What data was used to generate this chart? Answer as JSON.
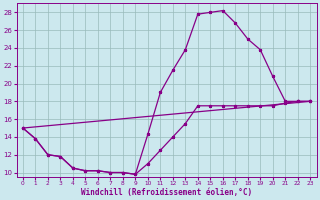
{
  "xlabel": "Windchill (Refroidissement éolien,°C)",
  "bg_color": "#cce8ee",
  "line_color": "#880088",
  "grid_color": "#99bbbb",
  "xlim": [
    -0.5,
    23.5
  ],
  "ylim": [
    9.5,
    29
  ],
  "yticks": [
    10,
    12,
    14,
    16,
    18,
    20,
    22,
    24,
    26,
    28
  ],
  "xticks": [
    0,
    1,
    2,
    3,
    4,
    5,
    6,
    7,
    8,
    9,
    10,
    11,
    12,
    13,
    14,
    15,
    16,
    17,
    18,
    19,
    20,
    21,
    22,
    23
  ],
  "curve1_x": [
    0,
    1,
    2,
    3,
    4,
    5,
    6,
    7,
    8,
    9,
    10,
    11,
    12,
    13,
    14,
    15,
    16,
    17,
    18,
    19,
    20,
    21,
    22,
    23
  ],
  "curve1_y": [
    15.0,
    13.8,
    12.0,
    11.8,
    10.5,
    10.2,
    10.2,
    10.0,
    10.0,
    9.8,
    14.3,
    19.0,
    21.5,
    23.8,
    27.8,
    28.0,
    28.2,
    26.8,
    25.0,
    23.8,
    20.8,
    18.0,
    18.0,
    18.0
  ],
  "curve2_x": [
    0,
    1,
    2,
    3,
    4,
    5,
    6,
    7,
    8,
    9,
    10,
    11,
    12,
    13,
    14,
    15,
    16,
    17,
    18,
    19,
    20,
    21,
    22,
    23
  ],
  "curve2_y": [
    15.0,
    13.8,
    12.0,
    11.8,
    10.5,
    10.2,
    10.2,
    10.0,
    10.0,
    9.8,
    11.0,
    12.5,
    14.0,
    15.5,
    17.5,
    17.5,
    17.5,
    17.5,
    17.5,
    17.5,
    17.5,
    17.8,
    18.0,
    18.0
  ],
  "curve3_x": [
    0,
    23
  ],
  "curve3_y": [
    15.0,
    18.0
  ]
}
